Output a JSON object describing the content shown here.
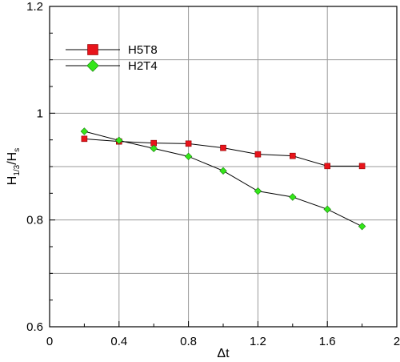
{
  "chart_data": {
    "type": "line",
    "xlabel": "Δt",
    "ylabel": "H1/3/Hs",
    "ylabel_parts": {
      "main1": "H",
      "sub1": "1/3",
      "slash": "/H",
      "sub2": "s"
    },
    "xlim": [
      0,
      2
    ],
    "ylim": [
      0.6,
      1.2
    ],
    "x_ticks": [
      "0",
      "0.4",
      "0.8",
      "1.2",
      "1.6",
      "2"
    ],
    "x_tick_values": [
      0,
      0.4,
      0.8,
      1.2,
      1.6,
      2.0
    ],
    "y_ticks": [
      "0.6",
      "0.8",
      "1",
      "1.2"
    ],
    "y_tick_values": [
      0.6,
      0.8,
      1.0,
      1.2
    ],
    "grid": true,
    "legend_position": "top-left",
    "series": [
      {
        "name": "H5T8",
        "marker": "square",
        "color": "#e8141b",
        "line_color": "#000000",
        "x": [
          0.2,
          0.4,
          0.6,
          0.8,
          1.0,
          1.2,
          1.4,
          1.6,
          1.8
        ],
        "y": [
          0.952,
          0.947,
          0.944,
          0.943,
          0.935,
          0.923,
          0.92,
          0.901,
          0.901
        ]
      },
      {
        "name": "H2T4",
        "marker": "diamond",
        "color": "#33e619",
        "line_color": "#000000",
        "x": [
          0.2,
          0.4,
          0.6,
          0.8,
          1.0,
          1.2,
          1.4,
          1.6,
          1.8
        ],
        "y": [
          0.966,
          0.949,
          0.934,
          0.919,
          0.892,
          0.854,
          0.843,
          0.82,
          0.788
        ]
      }
    ]
  }
}
